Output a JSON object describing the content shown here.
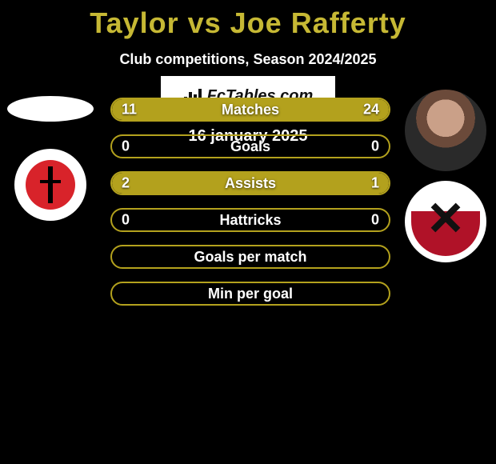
{
  "colors": {
    "accent": "#b3a11d",
    "title": "#c6b834",
    "text": "#ffffff",
    "bg": "#000000"
  },
  "header": {
    "title": "Taylor vs Joe Rafferty",
    "subtitle": "Club competitions, Season 2024/2025"
  },
  "left": {
    "player_name": "Taylor",
    "club": "Charlton Athletic"
  },
  "right": {
    "player_name": "Joe Rafferty",
    "club": "Rotherham"
  },
  "bars": [
    {
      "label": "Matches",
      "left": "11",
      "right": "24",
      "left_pct": 34,
      "right_pct": 66
    },
    {
      "label": "Goals",
      "left": "0",
      "right": "0",
      "left_pct": 0,
      "right_pct": 0
    },
    {
      "label": "Assists",
      "left": "2",
      "right": "1",
      "left_pct": 66,
      "right_pct": 34
    },
    {
      "label": "Hattricks",
      "left": "0",
      "right": "0",
      "left_pct": 0,
      "right_pct": 0
    },
    {
      "label": "Goals per match",
      "left": "",
      "right": "",
      "left_pct": 0,
      "right_pct": 0
    },
    {
      "label": "Min per goal",
      "left": "",
      "right": "",
      "left_pct": 0,
      "right_pct": 0
    }
  ],
  "footer": {
    "brand": "FcTables.com",
    "date": "16 january 2025"
  }
}
